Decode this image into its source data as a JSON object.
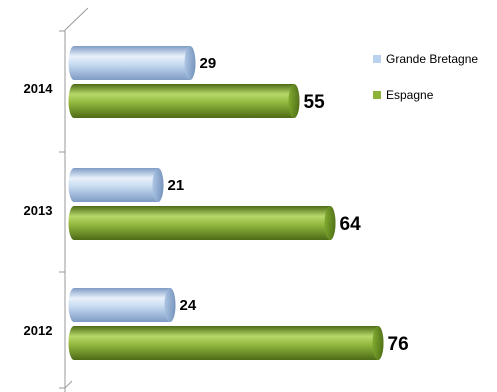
{
  "chart_data": {
    "type": "bar",
    "orientation": "horizontal",
    "categories": [
      "2012",
      "2013",
      "2014"
    ],
    "series": [
      {
        "name": "Grande Bretagne",
        "values": [
          24,
          21,
          29
        ],
        "color": "#B9D3EE"
      },
      {
        "name": "Espagne",
        "values": [
          76,
          64,
          55
        ],
        "color": "#8DB33A"
      }
    ],
    "xlim": [
      0,
      100
    ],
    "grid": false,
    "legend_position": "top-right",
    "data_labels": true
  }
}
